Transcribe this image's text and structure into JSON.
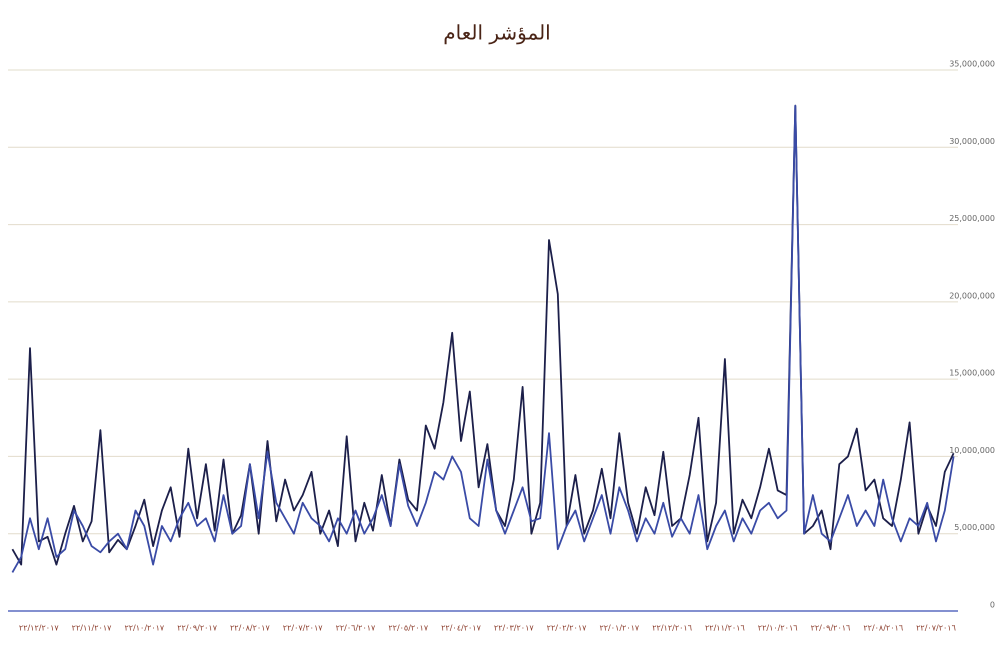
{
  "chart_data": {
    "type": "line",
    "title": "المؤشر العام",
    "categories": [
      null,
      null,
      null,
      "٢٢/١٢/٢٠١٧",
      null,
      null,
      null,
      null,
      null,
      "٢٢/١١/٢٠١٧",
      null,
      null,
      null,
      null,
      null,
      "٢٢/١٠/٢٠١٧",
      null,
      null,
      null,
      null,
      null,
      "٢٢/٠٩/٢٠١٧",
      null,
      null,
      null,
      null,
      null,
      "٢٢/٠٨/٢٠١٧",
      null,
      null,
      null,
      null,
      null,
      "٢٢/٠٧/٢٠١٧",
      null,
      null,
      null,
      null,
      null,
      "٢٢/٠٦/٢٠١٧",
      null,
      null,
      null,
      null,
      null,
      "٢٢/٠٥/٢٠١٧",
      null,
      null,
      null,
      null,
      null,
      "٢٢/٠٤/٢٠١٧",
      null,
      null,
      null,
      null,
      null,
      "٢٢/٠٣/٢٠١٧",
      null,
      null,
      null,
      null,
      null,
      "٢٢/٠٢/٢٠١٧",
      null,
      null,
      null,
      null,
      null,
      "٢٢/٠١/٢٠١٧",
      null,
      null,
      null,
      null,
      null,
      "٢٢/١٢/٢٠١٦",
      null,
      null,
      null,
      null,
      null,
      "٢٢/١١/٢٠١٦",
      null,
      null,
      null,
      null,
      null,
      "٢٢/١٠/٢٠١٦",
      null,
      null,
      null,
      null,
      null,
      "٢٢/٠٩/٢٠١٦",
      null,
      null,
      null,
      null,
      null,
      "٢٢/٠٨/٢٠١٦",
      null,
      null,
      null,
      null,
      null,
      "٢٢/٠٧/٢٠١٦",
      null,
      null
    ],
    "series": [
      {
        "color": "#1c1f4a",
        "values": [
          4000000,
          3000000,
          17000000,
          4500000,
          4800000,
          3000000,
          5000000,
          6800000,
          4500000,
          5800000,
          11700000,
          3800000,
          4600000,
          4000000,
          5500000,
          7200000,
          4200000,
          6500000,
          8000000,
          4800000,
          10500000,
          6000000,
          9500000,
          5200000,
          9800000,
          5000000,
          6200000,
          9500000,
          5000000,
          11000000,
          5800000,
          8500000,
          6500000,
          7500000,
          9000000,
          5000000,
          6500000,
          4200000,
          11300000,
          4500000,
          7000000,
          5200000,
          8800000,
          5500000,
          9800000,
          7200000,
          6500000,
          12000000,
          10500000,
          13500000,
          18000000,
          11000000,
          14200000,
          8000000,
          10800000,
          6500000,
          5500000,
          8500000,
          14500000,
          5000000,
          7000000,
          24000000,
          20500000,
          5500000,
          8800000,
          5000000,
          6500000,
          9200000,
          6000000,
          11500000,
          7000000,
          5000000,
          8000000,
          6200000,
          10300000,
          5500000,
          6000000,
          8800000,
          12500000,
          4500000,
          7000000,
          16300000,
          5000000,
          7200000,
          6000000,
          8000000,
          10500000,
          7800000,
          7500000,
          32700000,
          5000000,
          5500000,
          6500000,
          4000000,
          9500000,
          10000000,
          11800000,
          7800000,
          8500000,
          6000000,
          5500000,
          8500000,
          12200000,
          5000000,
          6800000,
          5500000,
          9000000,
          10200000
        ]
      },
      {
        "color": "#3a4ba6",
        "values": [
          2500000,
          3500000,
          6000000,
          4000000,
          6000000,
          3500000,
          4000000,
          6500000,
          5500000,
          4200000,
          3800000,
          4500000,
          5000000,
          4000000,
          6500000,
          5500000,
          3000000,
          5500000,
          4500000,
          6000000,
          7000000,
          5500000,
          6000000,
          4500000,
          7500000,
          5000000,
          5500000,
          9500000,
          6000000,
          10300000,
          7000000,
          6000000,
          5000000,
          7000000,
          6000000,
          5500000,
          4500000,
          6000000,
          5000000,
          6500000,
          5000000,
          6000000,
          7500000,
          5500000,
          9500000,
          6800000,
          5500000,
          7000000,
          9000000,
          8500000,
          10000000,
          9000000,
          6000000,
          5500000,
          9800000,
          6500000,
          5000000,
          6500000,
          8000000,
          5800000,
          6000000,
          11500000,
          4000000,
          5500000,
          6500000,
          4500000,
          6000000,
          7500000,
          5000000,
          8000000,
          6500000,
          4500000,
          6000000,
          5000000,
          7000000,
          4800000,
          6000000,
          5000000,
          7500000,
          4000000,
          5500000,
          6500000,
          4500000,
          6000000,
          5000000,
          6500000,
          7000000,
          6000000,
          6500000,
          32700000,
          5000000,
          7500000,
          5000000,
          4500000,
          6000000,
          7500000,
          5500000,
          6500000,
          5500000,
          8500000,
          6000000,
          4500000,
          6000000,
          5500000,
          7000000,
          4500000,
          6500000,
          10000000
        ]
      }
    ],
    "ylim": [
      0,
      35000000
    ],
    "yticks": [
      0,
      {
        "value": 5000000,
        "label": "5,000,000"
      },
      {
        "value": 10000000,
        "label": "10,000,000"
      },
      {
        "value": 15000000,
        "label": "15,000,000"
      },
      {
        "value": 20000000,
        "label": "20,000,000"
      },
      {
        "value": 25000000,
        "label": "25,000,000"
      },
      {
        "value": 30000000,
        "label": "30,000,000"
      },
      {
        "value": 35000000,
        "label": "35,000,000"
      }
    ],
    "grid": true
  }
}
